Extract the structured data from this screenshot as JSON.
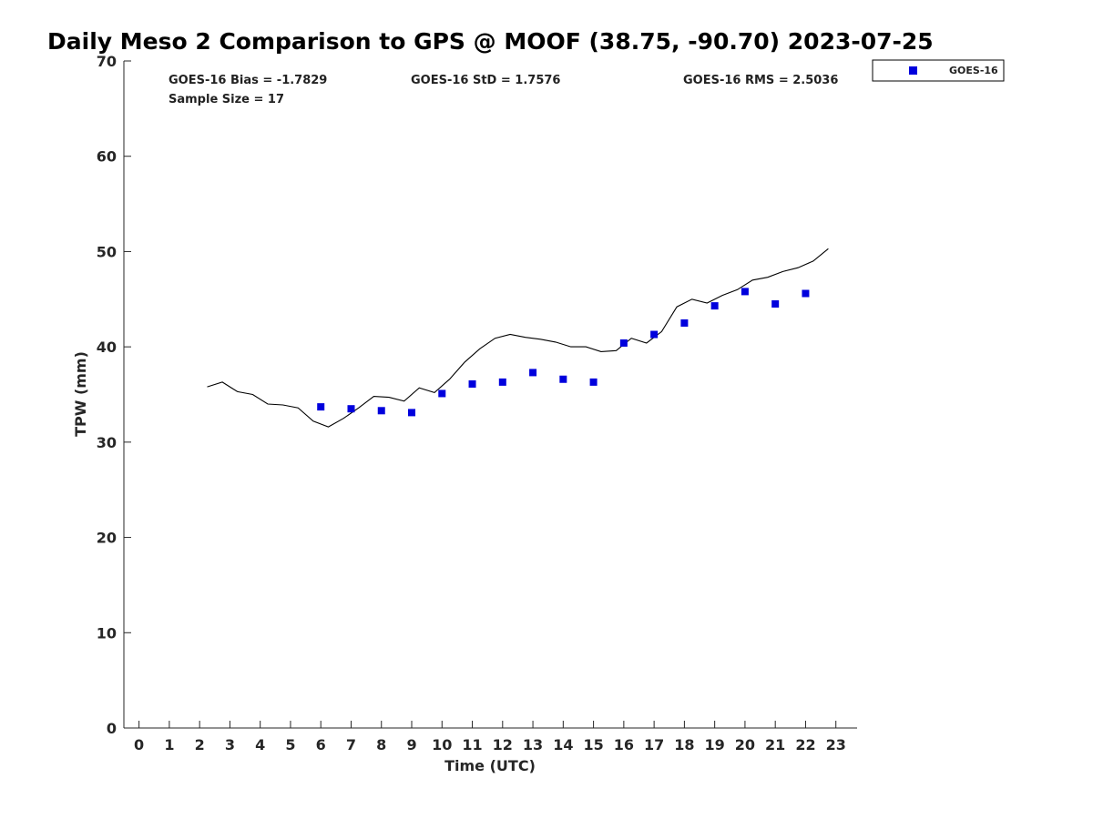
{
  "chart_data": {
    "type": "line",
    "title": "Daily Meso 2 Comparison to GPS @ MOOF (38.75, -90.70) 2023-07-25",
    "xlabel": "Time (UTC)",
    "ylabel": "TPW (mm)",
    "xlim": [
      -0.5,
      23.7
    ],
    "ylim": [
      0,
      70
    ],
    "x_ticks": [
      0,
      1,
      2,
      3,
      4,
      5,
      6,
      7,
      8,
      9,
      10,
      11,
      12,
      13,
      14,
      15,
      16,
      17,
      18,
      19,
      20,
      21,
      22,
      23
    ],
    "y_ticks": [
      0,
      10,
      20,
      30,
      40,
      50,
      60,
      70
    ],
    "grid": false,
    "legend_position": "top-right, outside plot",
    "stats": {
      "bias": "GOES-16 Bias = -1.7829",
      "std": "GOES-16 StD = 1.7576",
      "rms": "GOES-16 RMS = 2.5036",
      "sample_size": "Sample Size = 17"
    },
    "series": [
      {
        "kind": "line",
        "color": "#000000",
        "x": [
          2.25,
          2.75,
          3.25,
          3.75,
          4.25,
          4.75,
          5.25,
          5.75,
          6.25,
          6.75,
          7.25,
          7.75,
          8.25,
          8.75,
          9.25,
          9.75,
          10.25,
          10.75,
          11.25,
          11.75,
          12.25,
          12.75,
          13.25,
          13.75,
          14.25,
          14.75,
          15.25,
          15.75,
          16.25,
          16.75,
          17.25,
          17.75,
          18.25,
          18.75,
          19.25,
          19.75,
          20.25,
          20.75,
          21.25,
          21.75,
          22.25,
          22.75
        ],
        "y": [
          35.8,
          36.3,
          35.3,
          35.0,
          34.0,
          33.9,
          33.6,
          32.2,
          31.6,
          32.5,
          33.6,
          34.8,
          34.7,
          34.3,
          35.7,
          35.2,
          36.6,
          38.4,
          39.8,
          40.9,
          41.3,
          41.0,
          40.8,
          40.5,
          40.0,
          40.0,
          39.5,
          39.6,
          40.9,
          40.4,
          41.6,
          44.2,
          45.0,
          44.6,
          45.4,
          46.0,
          47.0,
          47.3,
          47.9,
          48.3,
          49.0,
          50.3
        ]
      },
      {
        "name": "GOES-16",
        "kind": "scatter",
        "color": "#0000dd",
        "marker": "square",
        "x": [
          6,
          7,
          8,
          9,
          10,
          11,
          12,
          13,
          14,
          15,
          16,
          17,
          18,
          19,
          20,
          21,
          22
        ],
        "y": [
          33.7,
          33.5,
          33.3,
          33.1,
          35.1,
          36.1,
          36.3,
          37.3,
          36.6,
          36.3,
          40.4,
          41.3,
          42.5,
          44.3,
          45.8,
          44.5,
          45.6
        ]
      }
    ]
  }
}
